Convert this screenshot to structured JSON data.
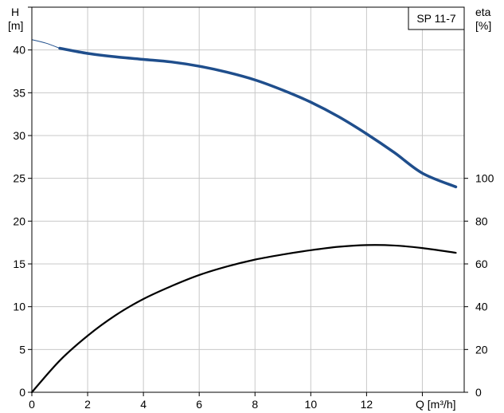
{
  "chart_data": {
    "type": "line",
    "title": "SP 11-7",
    "x_axis": {
      "label": "Q [m³/h]",
      "range": [
        0,
        15.5
      ],
      "ticks": [
        0,
        2,
        4,
        6,
        8,
        10,
        12
      ],
      "tick_labels": [
        "0",
        "2",
        "4",
        "6",
        "8",
        "10",
        "12"
      ]
    },
    "y_left": {
      "label_line1": "H",
      "label_line2": "[m]",
      "range": [
        0,
        45
      ],
      "ticks": [
        0,
        5,
        10,
        15,
        20,
        25,
        30,
        35,
        40
      ],
      "tick_labels": [
        "0",
        "5",
        "10",
        "15",
        "20",
        "25",
        "30",
        "35",
        "40"
      ]
    },
    "y_right": {
      "label_line1": "eta",
      "label_line2": "[%]",
      "range": [
        0,
        180
      ],
      "ticks": [
        0,
        20,
        40,
        60,
        80,
        100
      ],
      "tick_labels": [
        "0",
        "20",
        "40",
        "60",
        "80",
        "100"
      ]
    },
    "grid": true,
    "series": [
      {
        "role": "head",
        "axis": "left",
        "color": "#1f4e8c",
        "thin_x": [
          0,
          0.5,
          1.0
        ],
        "thin_y": [
          41.2,
          40.8,
          40.2
        ],
        "x": [
          1.0,
          2,
          3,
          4,
          5,
          6,
          7,
          8,
          9,
          10,
          11,
          12,
          13,
          14,
          15.2
        ],
        "y": [
          40.2,
          39.6,
          39.2,
          38.9,
          38.6,
          38.1,
          37.4,
          36.5,
          35.3,
          33.9,
          32.2,
          30.2,
          28.0,
          25.6,
          24.0
        ]
      },
      {
        "role": "efficiency",
        "axis": "right",
        "color": "#000000",
        "x": [
          0,
          1,
          2,
          3,
          4,
          5,
          6,
          7,
          8,
          9,
          10,
          11,
          12,
          13,
          14,
          15.2
        ],
        "y": [
          0,
          14.8,
          26.4,
          36.0,
          43.6,
          49.6,
          54.8,
          58.8,
          62.0,
          64.4,
          66.4,
          68.0,
          68.8,
          68.6,
          67.4,
          65.2
        ]
      }
    ]
  }
}
